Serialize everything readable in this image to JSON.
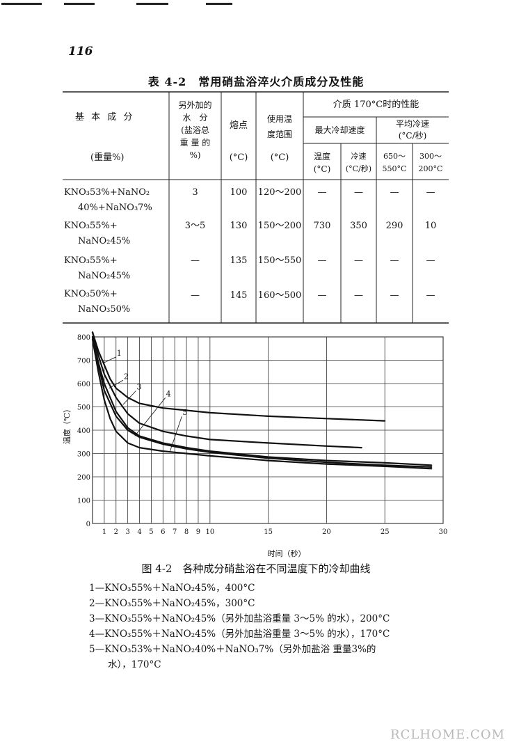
{
  "page_number": "116",
  "table": {
    "title": "表 4-2　常用硝盐浴淬火介质成分及性能",
    "headers": {
      "composition": "基 本 成 分",
      "composition_unit": "(重量%)",
      "water": [
        "另外加的",
        "水　分",
        "(盐浴总",
        "重 量 的",
        "%)"
      ],
      "melting": "熔点",
      "melting_unit": "(°C)",
      "use_range": [
        "使用温",
        "度范围"
      ],
      "use_range_unit": "(°C)",
      "perf": "介质 170°C时的性能",
      "max_rate": "最大冷却速度",
      "avg_rate": [
        "平均冷速",
        "(°C/秒)"
      ],
      "temp": [
        "温度",
        "(°C)"
      ],
      "cool_speed": [
        "冷速",
        "(°C/秒)"
      ],
      "range1": [
        "650～",
        "550°C"
      ],
      "range2": [
        "300～",
        "200°C"
      ]
    },
    "rows": [
      {
        "comp1": "KNO₃53%+NaNO₂",
        "comp2": "40%+NaNO₃7%",
        "water": "3",
        "melting": "100",
        "range": "120～200",
        "temp": "—",
        "speed": "—",
        "avg1": "—",
        "avg2": "—"
      },
      {
        "comp1": "KNO₃55%+",
        "comp2": "NaNO₂45%",
        "water": "3～5",
        "melting": "130",
        "range": "150～200",
        "temp": "730",
        "speed": "350",
        "avg1": "290",
        "avg2": "10"
      },
      {
        "comp1": "KNO₃55%+",
        "comp2": "NaNO₂45%",
        "water": "—",
        "melting": "135",
        "range": "150～550",
        "temp": "—",
        "speed": "—",
        "avg1": "—",
        "avg2": "—"
      },
      {
        "comp1": "KNO₃50%+",
        "comp2": "NaNO₃50%",
        "water": "—",
        "melting": "145",
        "range": "160～500",
        "temp": "—",
        "speed": "—",
        "avg1": "—",
        "avg2": "—"
      }
    ]
  },
  "chart_data": {
    "type": "line",
    "xlabel": "时间（秒）",
    "ylabel": "温度（℃）",
    "x_ticks": [
      1,
      2,
      3,
      4,
      5,
      6,
      7,
      8,
      9,
      10,
      15,
      20,
      25,
      30
    ],
    "y_ticks": [
      0,
      100,
      200,
      300,
      400,
      500,
      600,
      700,
      800
    ],
    "x_range": [
      0,
      30
    ],
    "y_range": [
      0,
      800
    ],
    "grid": true,
    "series": [
      {
        "name": "1",
        "points": [
          [
            0,
            820
          ],
          [
            0.5,
            740
          ],
          [
            1,
            680
          ],
          [
            1.5,
            620
          ],
          [
            2,
            580
          ],
          [
            3,
            540
          ],
          [
            4,
            515
          ],
          [
            6,
            495
          ],
          [
            8,
            485
          ],
          [
            10,
            475
          ],
          [
            15,
            460
          ],
          [
            20,
            450
          ],
          [
            25,
            440
          ]
        ]
      },
      {
        "name": "2",
        "points": [
          [
            0,
            820
          ],
          [
            0.5,
            720
          ],
          [
            1,
            640
          ],
          [
            2,
            540
          ],
          [
            3,
            470
          ],
          [
            4,
            430
          ],
          [
            6,
            395
          ],
          [
            8,
            375
          ],
          [
            10,
            360
          ],
          [
            15,
            345
          ],
          [
            20,
            332
          ],
          [
            23,
            325
          ]
        ]
      },
      {
        "name": "3",
        "points": [
          [
            0,
            800
          ],
          [
            0.5,
            690
          ],
          [
            1,
            600
          ],
          [
            2,
            480
          ],
          [
            3,
            410
          ],
          [
            4,
            375
          ],
          [
            6,
            345
          ],
          [
            8,
            325
          ],
          [
            10,
            310
          ],
          [
            15,
            285
          ],
          [
            20,
            270
          ],
          [
            25,
            260
          ],
          [
            29,
            250
          ]
        ]
      },
      {
        "name": "4",
        "points": [
          [
            0,
            790
          ],
          [
            0.5,
            650
          ],
          [
            1,
            530
          ],
          [
            1.5,
            450
          ],
          [
            2,
            395
          ],
          [
            3,
            345
          ],
          [
            4,
            325
          ],
          [
            6,
            310
          ],
          [
            8,
            300
          ],
          [
            10,
            290
          ],
          [
            15,
            270
          ],
          [
            20,
            255
          ],
          [
            25,
            245
          ],
          [
            29,
            235
          ]
        ]
      },
      {
        "name": "5",
        "points": [
          [
            0,
            800
          ],
          [
            0.5,
            680
          ],
          [
            1,
            570
          ],
          [
            2,
            460
          ],
          [
            3,
            400
          ],
          [
            4,
            370
          ],
          [
            6,
            340
          ],
          [
            8,
            320
          ],
          [
            10,
            305
          ],
          [
            15,
            280
          ],
          [
            20,
            262
          ],
          [
            25,
            250
          ],
          [
            29,
            242
          ]
        ]
      }
    ],
    "curve_labels": [
      "1",
      "2",
      "3",
      "4",
      "5"
    ]
  },
  "figure": {
    "caption": "图 4-2　各种成分硝盐浴在不同温度下的冷却曲线",
    "legend": [
      "1—KNO₃55%＋NaNO₂45%，400°C",
      "2—KNO₃55%＋NaNO₂45%，300°C",
      "3—KNO₃55%＋NaNO₂45%（另外加盐浴重量 3～5% 的水），200°C",
      "4—KNO₃55%＋NaNO₂45%（另外加盐浴重量 3～5% 的水），170°C",
      "5—KNO₃53%＋NaNO₂40%＋NaNO₃7%（另外加盐浴 重量3%的",
      "　　水），170°C"
    ]
  },
  "watermark": "RCLHOME.COM"
}
